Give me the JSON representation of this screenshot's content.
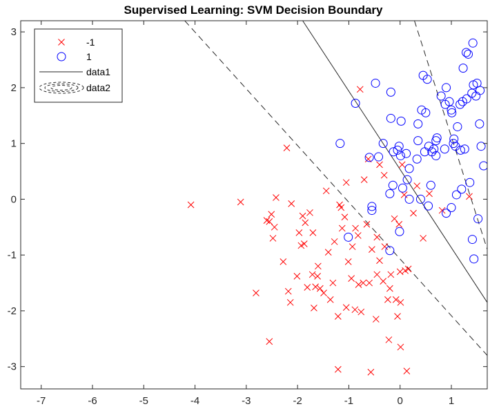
{
  "chart_data": {
    "type": "scatter",
    "title": "Supervised Learning: SVM Decision Boundary",
    "xlabel": "",
    "ylabel": "",
    "xlim": [
      -7.4,
      1.7
    ],
    "ylim": [
      -3.4,
      3.2
    ],
    "xticks": [
      -7,
      -6,
      -5,
      -4,
      -3,
      -2,
      -1,
      0,
      1
    ],
    "yticks": [
      -3,
      -2,
      -1,
      0,
      1,
      2,
      3
    ],
    "grid": false,
    "legend_position": "top-left",
    "series": [
      {
        "name": "-1",
        "marker": "x",
        "color": "#ff0000",
        "points": [
          [
            -4.08,
            -0.1
          ],
          [
            -3.11,
            -0.05
          ],
          [
            -2.81,
            -1.68
          ],
          [
            -2.55,
            -2.55
          ],
          [
            -2.55,
            -0.4
          ],
          [
            -2.51,
            -0.27
          ],
          [
            -2.48,
            -0.7
          ],
          [
            -2.45,
            -0.5
          ],
          [
            -2.42,
            0.03
          ],
          [
            -2.21,
            0.92
          ],
          [
            -2.18,
            -1.65
          ],
          [
            -2.14,
            -1.85
          ],
          [
            -2.12,
            -0.08
          ],
          [
            -2.01,
            -1.38
          ],
          [
            -1.93,
            -0.83
          ],
          [
            -1.87,
            -0.8
          ],
          [
            -1.81,
            -1.58
          ],
          [
            -1.76,
            -0.24
          ],
          [
            -1.71,
            -1.35
          ],
          [
            -1.68,
            -1.95
          ],
          [
            -1.65,
            -1.57
          ],
          [
            -1.61,
            -1.38
          ],
          [
            -1.56,
            -1.6
          ],
          [
            -1.49,
            -1.68
          ],
          [
            -1.44,
            0.15
          ],
          [
            -1.36,
            -1.8
          ],
          [
            -1.31,
            -1.5
          ],
          [
            -1.28,
            -0.76
          ],
          [
            -1.21,
            -2.1
          ],
          [
            -1.21,
            -3.05
          ],
          [
            -1.18,
            -0.1
          ],
          [
            -1.15,
            -0.15
          ],
          [
            -1.13,
            -0.52
          ],
          [
            -1.08,
            -0.32
          ],
          [
            -1.05,
            -1.94
          ],
          [
            -1.01,
            -1.12
          ],
          [
            -0.95,
            -1.42
          ],
          [
            -0.93,
            -0.85
          ],
          [
            -0.88,
            -1.98
          ],
          [
            -0.87,
            -0.52
          ],
          [
            -0.82,
            -0.65
          ],
          [
            -0.81,
            -1.53
          ],
          [
            -0.76,
            -2.02
          ],
          [
            -0.72,
            -1.5
          ],
          [
            -0.65,
            -0.45
          ],
          [
            -0.6,
            -1.5
          ],
          [
            -0.57,
            -3.1
          ],
          [
            -0.47,
            -2.15
          ],
          [
            -0.45,
            -1.35
          ],
          [
            -0.45,
            -0.68
          ],
          [
            -0.4,
            -1.1
          ],
          [
            -0.33,
            -1.47
          ],
          [
            -0.31,
            0.43
          ],
          [
            -0.24,
            -1.8
          ],
          [
            -0.22,
            -2.52
          ],
          [
            -0.18,
            -1.35
          ],
          [
            -0.11,
            -0.35
          ],
          [
            -0.08,
            -1.8
          ],
          [
            -0.05,
            -2.1
          ],
          [
            -0.02,
            -0.45
          ],
          [
            0.0,
            -1.3
          ],
          [
            0.01,
            -1.85
          ],
          [
            0.01,
            -2.65
          ],
          [
            0.04,
            0.62
          ],
          [
            0.08,
            0.08
          ],
          [
            0.1,
            -1.28
          ],
          [
            0.13,
            -3.08
          ],
          [
            0.16,
            -1.25
          ],
          [
            0.26,
            -0.25
          ],
          [
            0.33,
            0.24
          ],
          [
            0.45,
            -0.7
          ],
          [
            0.57,
            0.1
          ],
          [
            0.82,
            -0.2
          ],
          [
            1.35,
            0.05
          ],
          [
            -1.97,
            -0.6
          ],
          [
            -1.85,
            -0.42
          ],
          [
            -2.28,
            -1.12
          ],
          [
            -1.05,
            0.3
          ],
          [
            -0.62,
            0.72
          ],
          [
            -0.4,
            0.62
          ],
          [
            -0.78,
            1.97
          ],
          [
            -1.6,
            -1.2
          ],
          [
            -1.4,
            -0.95
          ],
          [
            -0.3,
            -0.85
          ],
          [
            -2.6,
            -0.38
          ],
          [
            -1.9,
            -0.3
          ],
          [
            -0.55,
            -0.9
          ],
          [
            -1.7,
            -0.6
          ],
          [
            -0.7,
            0.35
          ],
          [
            -0.2,
            -1.6
          ]
        ]
      },
      {
        "name": "1",
        "marker": "o",
        "color": "#0000ff",
        "points": [
          [
            -1.17,
            1.0
          ],
          [
            -1.01,
            -0.68
          ],
          [
            -0.87,
            1.72
          ],
          [
            -0.6,
            0.75
          ],
          [
            -0.55,
            -0.2
          ],
          [
            -0.55,
            -0.13
          ],
          [
            -0.48,
            2.08
          ],
          [
            -0.42,
            0.76
          ],
          [
            -0.33,
            1.0
          ],
          [
            -0.2,
            -0.92
          ],
          [
            -0.18,
            1.92
          ],
          [
            -0.18,
            1.45
          ],
          [
            -0.14,
            0.25
          ],
          [
            -0.13,
            0.85
          ],
          [
            -0.02,
            0.95
          ],
          [
            -0.01,
            -0.58
          ],
          [
            0.01,
            0.78
          ],
          [
            0.02,
            1.4
          ],
          [
            0.12,
            0.82
          ],
          [
            0.18,
            0.0
          ],
          [
            0.18,
            0.55
          ],
          [
            0.35,
            1.05
          ],
          [
            0.35,
            1.35
          ],
          [
            0.42,
            1.6
          ],
          [
            0.45,
            2.22
          ],
          [
            0.48,
            0.85
          ],
          [
            0.5,
            1.55
          ],
          [
            0.53,
            2.15
          ],
          [
            0.56,
            0.95
          ],
          [
            0.6,
            0.25
          ],
          [
            0.62,
            0.85
          ],
          [
            0.66,
            0.9
          ],
          [
            0.7,
            1.05
          ],
          [
            0.72,
            1.1
          ],
          [
            0.8,
            1.85
          ],
          [
            0.87,
            0.9
          ],
          [
            0.9,
            2.0
          ],
          [
            0.96,
            1.75
          ],
          [
            1.0,
            1.6
          ],
          [
            1.01,
            1.55
          ],
          [
            1.04,
            1.0
          ],
          [
            1.08,
            0.95
          ],
          [
            1.1,
            0.08
          ],
          [
            1.12,
            1.3
          ],
          [
            1.17,
            1.7
          ],
          [
            1.2,
            0.18
          ],
          [
            1.23,
            2.35
          ],
          [
            1.26,
            0.9
          ],
          [
            1.29,
            2.63
          ],
          [
            1.3,
            1.8
          ],
          [
            1.33,
            2.6
          ],
          [
            1.36,
            0.3
          ],
          [
            1.4,
            1.9
          ],
          [
            1.41,
            -0.72
          ],
          [
            1.43,
            2.05
          ],
          [
            1.44,
            -1.07
          ],
          [
            1.48,
            1.85
          ],
          [
            1.5,
            2.08
          ],
          [
            1.52,
            -0.35
          ],
          [
            1.55,
            1.35
          ],
          [
            1.56,
            1.95
          ],
          [
            1.58,
            0.95
          ],
          [
            1.63,
            0.6
          ],
          [
            -0.2,
            0.1
          ],
          [
            0.05,
            0.2
          ],
          [
            0.4,
            0.0
          ],
          [
            0.9,
            -0.25
          ],
          [
            1.18,
            0.88
          ],
          [
            1.42,
            2.8
          ],
          [
            0.88,
            1.7
          ],
          [
            0.14,
            0.35
          ],
          [
            0.55,
            -0.12
          ],
          [
            -0.05,
            0.88
          ],
          [
            0.33,
            0.72
          ],
          [
            1.05,
            1.08
          ],
          [
            1.22,
            1.75
          ],
          [
            0.7,
            0.78
          ],
          [
            1.0,
            -0.15
          ]
        ]
      },
      {
        "name": "data1",
        "type": "line",
        "style": "solid",
        "color": "#262626",
        "points": [
          [
            -1.9,
            3.2
          ],
          [
            1.7,
            -1.85
          ]
        ]
      },
      {
        "name": "data2",
        "type": "line",
        "style": "dashed",
        "color": "#262626",
        "segments": [
          [
            [
              -4.2,
              3.2
            ],
            [
              1.7,
              -2.8
            ]
          ],
          [
            [
              0.28,
              3.2
            ],
            [
              1.7,
              -0.9
            ]
          ]
        ]
      }
    ]
  }
}
